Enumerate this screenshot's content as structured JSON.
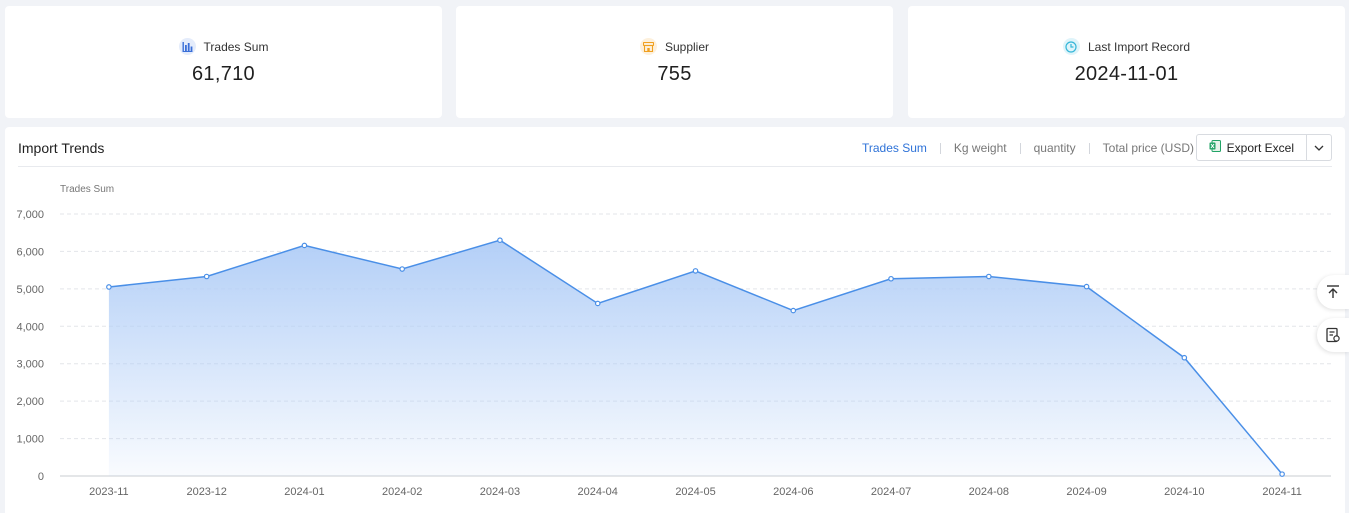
{
  "stats": [
    {
      "label": "Trades Sum",
      "value": "61,710",
      "icon": "bar-chart-icon",
      "color": "#3a6fd8",
      "bg": "#e4ecfb"
    },
    {
      "label": "Supplier",
      "value": "755",
      "icon": "store-icon",
      "color": "#f0a020",
      "bg": "#fdf0dc"
    },
    {
      "label": "Last Import Record",
      "value": "2024-11-01",
      "icon": "clock-icon",
      "color": "#34b6d8",
      "bg": "#dff4fa"
    }
  ],
  "panel": {
    "title": "Import Trends",
    "tabs": [
      {
        "label": "Trades Sum",
        "active": true
      },
      {
        "label": "Kg weight",
        "active": false
      },
      {
        "label": "quantity",
        "active": false
      },
      {
        "label": "Total price (USD)",
        "active": false
      }
    ],
    "export_label": "Export Excel"
  },
  "side_buttons": [
    {
      "icon": "back-to-top-icon"
    },
    {
      "icon": "report-settings-icon"
    }
  ],
  "colors": {
    "accent": "#2f73d8",
    "line": "#4a8fe7"
  },
  "chart_data": {
    "type": "area",
    "title": "",
    "xlabel": "",
    "ylabel": "Trades Sum",
    "categories": [
      "2023-11",
      "2023-12",
      "2024-01",
      "2024-02",
      "2024-03",
      "2024-04",
      "2024-05",
      "2024-06",
      "2024-07",
      "2024-08",
      "2024-09",
      "2024-10",
      "2024-11"
    ],
    "yticks": [
      "0",
      "1,000",
      "2,000",
      "3,000",
      "4,000",
      "5,000",
      "6,000",
      "7,000"
    ],
    "series": [
      {
        "values": [
          5050,
          5330,
          6160,
          5530,
          6300,
          4610,
          5480,
          4420,
          5270,
          5330,
          5060,
          3160,
          50
        ]
      }
    ],
    "ylim": [
      0,
      7000
    ],
    "grid": true
  }
}
